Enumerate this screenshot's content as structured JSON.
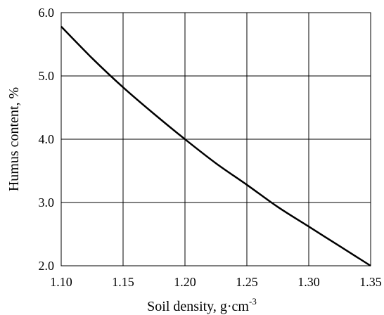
{
  "chart_data": {
    "type": "line",
    "title": "",
    "xlabel": "Soil density, g·cm",
    "xlabel_superscript": "-3",
    "ylabel": "Humus content, %",
    "xlim": [
      1.1,
      1.35
    ],
    "ylim": [
      2.0,
      6.0
    ],
    "grid": true,
    "x_ticks": [
      "1.10",
      "1.15",
      "1.20",
      "1.25",
      "1.30",
      "1.35"
    ],
    "y_ticks": [
      "6.0",
      "5.0",
      "4.0",
      "3.0",
      "2.0"
    ],
    "series": [
      {
        "x": [
          1.1,
          1.125,
          1.15,
          1.175,
          1.2,
          1.225,
          1.25,
          1.275,
          1.3,
          1.325,
          1.35
        ],
        "y": [
          5.78,
          5.28,
          4.82,
          4.4,
          4.0,
          3.62,
          3.28,
          2.93,
          2.62,
          2.31,
          2.0
        ],
        "color": "#000000"
      }
    ]
  }
}
